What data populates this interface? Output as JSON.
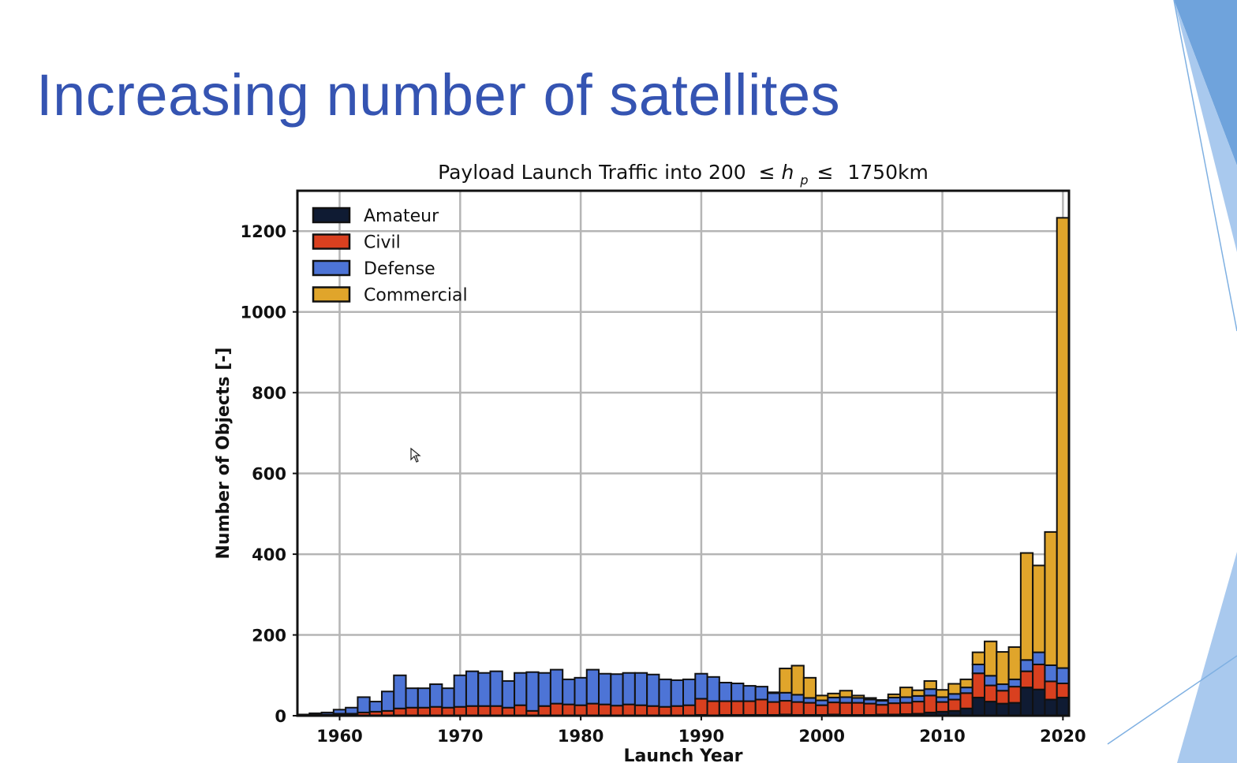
{
  "slide": {
    "title": "Increasing number of satellites"
  },
  "colors": {
    "title": "#3554b2",
    "Amateur": "#0f1b33",
    "Civil": "#d9401f",
    "Defense": "#4d74d6",
    "Commercial": "#e0a52b",
    "accent_shape": "#6fa3dc"
  },
  "chart_data": {
    "type": "bar",
    "stacked": true,
    "title_prefix": "Payload Launch Traffic into 200",
    "title_symbol_le": "≤",
    "title_var": "h",
    "title_sub": "p",
    "title_suffix": "1750km",
    "xlabel": "Launch Year",
    "ylabel": "Number of Objects [-]",
    "xlim": [
      1956.5,
      2020.5
    ],
    "ylim": [
      0,
      1300
    ],
    "xticks": [
      1960,
      1970,
      1980,
      1990,
      2000,
      2010,
      2020
    ],
    "yticks": [
      0,
      200,
      400,
      600,
      800,
      1000,
      1200
    ],
    "grid": true,
    "legend_position": "top-left",
    "legend": [
      "Amateur",
      "Civil",
      "Defense",
      "Commercial"
    ],
    "years": [
      1957,
      1958,
      1959,
      1960,
      1961,
      1962,
      1963,
      1964,
      1965,
      1966,
      1967,
      1968,
      1969,
      1970,
      1971,
      1972,
      1973,
      1974,
      1975,
      1976,
      1977,
      1978,
      1979,
      1980,
      1981,
      1982,
      1983,
      1984,
      1985,
      1986,
      1987,
      1988,
      1989,
      1990,
      1991,
      1992,
      1993,
      1994,
      1995,
      1996,
      1997,
      1998,
      1999,
      2000,
      2001,
      2002,
      2003,
      2004,
      2005,
      2006,
      2007,
      2008,
      2009,
      2010,
      2011,
      2012,
      2013,
      2014,
      2015,
      2016,
      2017,
      2018,
      2019,
      2020
    ],
    "series": [
      {
        "name": "Amateur",
        "values": [
          0,
          0,
          0,
          0,
          0,
          0,
          0,
          0,
          0,
          0,
          0,
          0,
          0,
          0,
          0,
          0,
          0,
          0,
          0,
          0,
          0,
          0,
          0,
          0,
          0,
          0,
          0,
          0,
          0,
          0,
          0,
          0,
          0,
          2,
          0,
          2,
          2,
          2,
          2,
          2,
          3,
          2,
          2,
          2,
          3,
          2,
          2,
          2,
          3,
          3,
          4,
          5,
          8,
          10,
          12,
          18,
          45,
          35,
          30,
          32,
          70,
          65,
          40,
          45
        ]
      },
      {
        "name": "Civil",
        "values": [
          1,
          2,
          3,
          5,
          5,
          8,
          10,
          12,
          18,
          20,
          20,
          22,
          20,
          22,
          24,
          24,
          24,
          20,
          26,
          12,
          24,
          30,
          28,
          26,
          30,
          28,
          25,
          28,
          26,
          24,
          22,
          24,
          26,
          40,
          36,
          34,
          34,
          34,
          38,
          32,
          34,
          32,
          30,
          24,
          30,
          30,
          30,
          28,
          24,
          28,
          28,
          30,
          42,
          24,
          28,
          38,
          60,
          40,
          32,
          40,
          40,
          62,
          45,
          35
        ]
      },
      {
        "name": "Defense",
        "values": [
          2,
          4,
          5,
          10,
          15,
          38,
          25,
          48,
          82,
          48,
          48,
          56,
          48,
          78,
          86,
          82,
          86,
          66,
          80,
          96,
          82,
          84,
          62,
          68,
          84,
          76,
          78,
          78,
          80,
          78,
          68,
          64,
          64,
          62,
          60,
          46,
          44,
          38,
          32,
          22,
          20,
          18,
          12,
          12,
          12,
          14,
          12,
          10,
          10,
          14,
          14,
          14,
          16,
          12,
          14,
          14,
          22,
          24,
          16,
          18,
          28,
          30,
          40,
          38
        ]
      },
      {
        "name": "Commercial",
        "values": [
          0,
          0,
          0,
          0,
          0,
          0,
          0,
          0,
          0,
          0,
          0,
          0,
          0,
          0,
          0,
          0,
          0,
          0,
          0,
          0,
          0,
          0,
          0,
          0,
          0,
          0,
          0,
          0,
          0,
          0,
          0,
          0,
          0,
          0,
          0,
          0,
          0,
          0,
          0,
          2,
          60,
          72,
          50,
          12,
          10,
          16,
          6,
          4,
          2,
          8,
          24,
          14,
          20,
          18,
          25,
          20,
          30,
          85,
          80,
          80,
          265,
          215,
          330,
          1115
        ]
      }
    ]
  }
}
